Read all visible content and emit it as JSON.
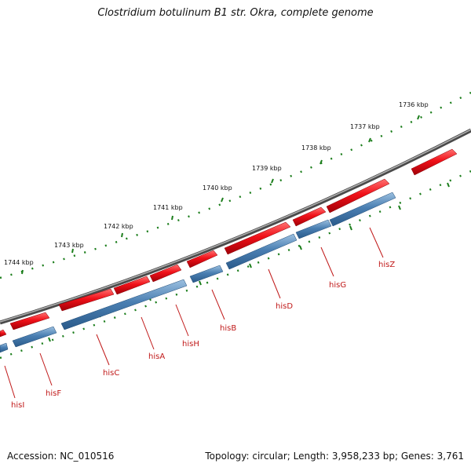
{
  "title": "Clostridium botulinum B1 str. Okra, complete genome",
  "footer": {
    "accession": "Accession: NC_010516",
    "summary": "Topology: circular; Length: 3,958,233 bp; Genes: 3,761"
  },
  "colors": {
    "backbone": "#777777",
    "gene_forward": "#e8101a",
    "cds": "#4a7fb2",
    "tick": "#1b7d1b",
    "label": "#c01818"
  },
  "ruler": {
    "unit": "kbp",
    "ticks": [
      "1736 kbp",
      "1737 kbp",
      "1738 kbp",
      "1739 kbp",
      "1740 kbp",
      "1741 kbp",
      "1742 kbp",
      "1743 kbp",
      "1744 kbp"
    ]
  },
  "genes": [
    "hisZ",
    "hisG",
    "hisD",
    "hisB",
    "hisH",
    "hisA",
    "hisC",
    "hisF",
    "hisI"
  ]
}
